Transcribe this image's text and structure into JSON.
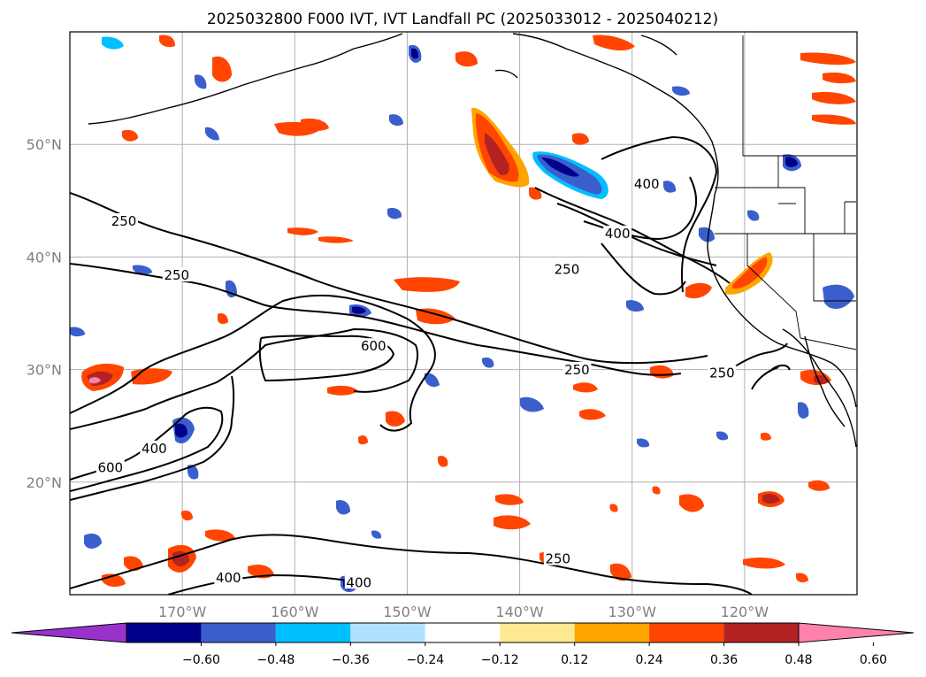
{
  "title": "2025032800 F000 IVT, IVT Landfall PC (2025033012 - 2025040212)",
  "map": {
    "lon_range": [
      -180,
      -110
    ],
    "lat_range": [
      10,
      60
    ],
    "lat_labels": [
      "20°N",
      "30°N",
      "40°N",
      "50°N"
    ],
    "lon_labels": [
      "170°W",
      "160°W",
      "150°W",
      "140°W",
      "130°W",
      "120°W"
    ],
    "grid": true
  },
  "colorbar": {
    "tick_labels": [
      "−0.60",
      "−0.48",
      "−0.36",
      "−0.24",
      "−0.12",
      "0.12",
      "0.24",
      "0.36",
      "0.48",
      "0.60"
    ],
    "colors": [
      "#9932cc",
      "#00008b",
      "#3a5fcd",
      "#00bfff",
      "#b0e2ff",
      "#ffffff",
      "#ffe990",
      "#ffa500",
      "#ff4500",
      "#b22222",
      "#ff82ab"
    ],
    "extend": "both"
  },
  "contour_labels": [
    {
      "text": "250",
      "lon": -175.2,
      "lat": 43.1
    },
    {
      "text": "250",
      "lon": -170.5,
      "lat": 38.3
    },
    {
      "text": "600",
      "lon": -153.0,
      "lat": 32.0
    },
    {
      "text": "600",
      "lon": -176.4,
      "lat": 21.2
    },
    {
      "text": "400",
      "lon": -172.5,
      "lat": 22.9
    },
    {
      "text": "400",
      "lon": -128.7,
      "lat": 46.4
    },
    {
      "text": "400",
      "lon": -131.3,
      "lat": 42.0
    },
    {
      "text": "250",
      "lon": -135.8,
      "lat": 38.8
    },
    {
      "text": "250",
      "lon": -134.9,
      "lat": 29.9
    },
    {
      "text": "250",
      "lon": -122.0,
      "lat": 29.6
    },
    {
      "text": "250",
      "lon": -136.6,
      "lat": 13.1
    },
    {
      "text": "400",
      "lon": -165.9,
      "lat": 11.4
    },
    {
      "text": "400",
      "lon": -154.3,
      "lat": 11.0
    }
  ]
}
